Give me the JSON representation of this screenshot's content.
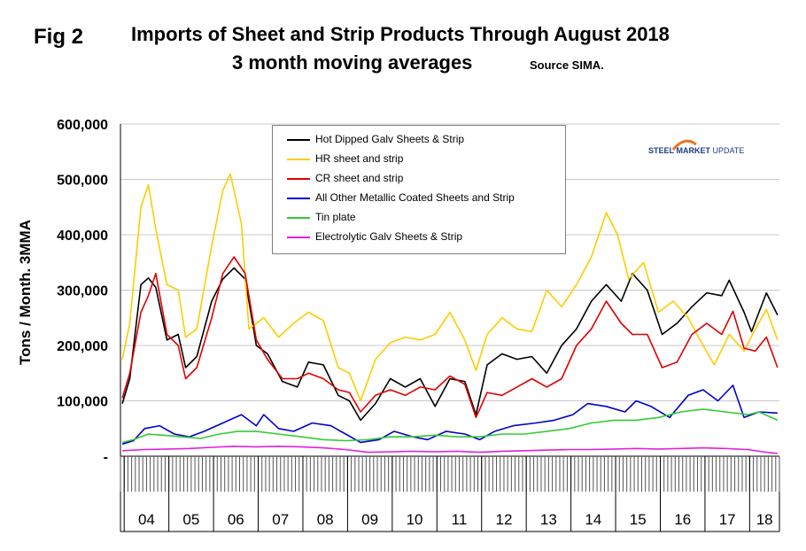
{
  "header": {
    "fig_label": "Fig 2",
    "title_line1": "Imports of Sheet and Strip Products Through August 2018",
    "title_line2": "3 month moving averages",
    "source": "Source SIMA."
  },
  "logo": {
    "word1": "STEEL",
    "word2": "MARKET",
    "word3": "UPDATE",
    "colors": {
      "primary": "#1f3c88",
      "accent": "#e87722"
    }
  },
  "chart_data": {
    "type": "line",
    "title": "Imports of Sheet and Strip Products Through August 2018",
    "subtitle": "3 month moving averages",
    "xlabel": "",
    "ylabel": "Tons / Month. 3MMA",
    "ylim": [
      0,
      600000
    ],
    "y_ticks": [
      0,
      100000,
      200000,
      300000,
      400000,
      500000,
      600000
    ],
    "y_tick_labels": [
      "-",
      "100,000",
      "200,000",
      "300,000",
      "400,000",
      "500,000",
      "600,000"
    ],
    "x_tick_labels": [
      "04",
      "05",
      "06",
      "07",
      "08",
      "09",
      "10",
      "11",
      "12",
      "13",
      "14",
      "15",
      "16",
      "17",
      "18"
    ],
    "x_range": [
      "2003-12",
      "2018-08"
    ],
    "grid": "horizontal",
    "legend_position": "top-center",
    "series": [
      {
        "name": "Hot Dipped Galv Sheets & Strip",
        "color": "#000000",
        "points": [
          [
            "2003-12",
            95000
          ],
          [
            "2004-02",
            140000
          ],
          [
            "2004-05",
            310000
          ],
          [
            "2004-07",
            322000
          ],
          [
            "2004-09",
            305000
          ],
          [
            "2004-12",
            210000
          ],
          [
            "2005-03",
            220000
          ],
          [
            "2005-05",
            160000
          ],
          [
            "2005-08",
            180000
          ],
          [
            "2005-12",
            280000
          ],
          [
            "2006-03",
            320000
          ],
          [
            "2006-06",
            340000
          ],
          [
            "2006-09",
            320000
          ],
          [
            "2006-12",
            200000
          ],
          [
            "2007-03",
            185000
          ],
          [
            "2007-07",
            135000
          ],
          [
            "2007-11",
            125000
          ],
          [
            "2008-02",
            170000
          ],
          [
            "2008-06",
            165000
          ],
          [
            "2008-10",
            110000
          ],
          [
            "2009-01",
            100000
          ],
          [
            "2009-04",
            65000
          ],
          [
            "2009-08",
            95000
          ],
          [
            "2009-12",
            140000
          ],
          [
            "2010-04",
            125000
          ],
          [
            "2010-08",
            140000
          ],
          [
            "2010-12",
            90000
          ],
          [
            "2011-04",
            140000
          ],
          [
            "2011-08",
            135000
          ],
          [
            "2011-11",
            75000
          ],
          [
            "2012-02",
            165000
          ],
          [
            "2012-06",
            185000
          ],
          [
            "2012-10",
            175000
          ],
          [
            "2013-02",
            180000
          ],
          [
            "2013-06",
            150000
          ],
          [
            "2013-10",
            200000
          ],
          [
            "2014-02",
            230000
          ],
          [
            "2014-06",
            280000
          ],
          [
            "2014-10",
            310000
          ],
          [
            "2015-02",
            280000
          ],
          [
            "2015-05",
            330000
          ],
          [
            "2015-09",
            300000
          ],
          [
            "2016-01",
            220000
          ],
          [
            "2016-05",
            240000
          ],
          [
            "2016-09",
            270000
          ],
          [
            "2017-01",
            295000
          ],
          [
            "2017-05",
            290000
          ],
          [
            "2017-07",
            318000
          ],
          [
            "2017-11",
            260000
          ],
          [
            "2018-01",
            225000
          ],
          [
            "2018-05",
            295000
          ],
          [
            "2018-08",
            255000
          ]
        ]
      },
      {
        "name": "HR sheet and strip",
        "color": "#ffcc00",
        "points": [
          [
            "2003-12",
            175000
          ],
          [
            "2004-02",
            240000
          ],
          [
            "2004-05",
            450000
          ],
          [
            "2004-07",
            490000
          ],
          [
            "2004-09",
            410000
          ],
          [
            "2004-12",
            310000
          ],
          [
            "2005-03",
            300000
          ],
          [
            "2005-05",
            215000
          ],
          [
            "2005-08",
            230000
          ],
          [
            "2005-12",
            380000
          ],
          [
            "2006-03",
            480000
          ],
          [
            "2006-05",
            510000
          ],
          [
            "2006-08",
            420000
          ],
          [
            "2006-10",
            230000
          ],
          [
            "2007-02",
            250000
          ],
          [
            "2007-06",
            215000
          ],
          [
            "2007-10",
            240000
          ],
          [
            "2008-02",
            260000
          ],
          [
            "2008-06",
            245000
          ],
          [
            "2008-10",
            160000
          ],
          [
            "2009-01",
            150000
          ],
          [
            "2009-04",
            100000
          ],
          [
            "2009-08",
            175000
          ],
          [
            "2009-12",
            205000
          ],
          [
            "2010-04",
            215000
          ],
          [
            "2010-08",
            210000
          ],
          [
            "2010-12",
            220000
          ],
          [
            "2011-04",
            260000
          ],
          [
            "2011-08",
            210000
          ],
          [
            "2011-11",
            155000
          ],
          [
            "2012-02",
            220000
          ],
          [
            "2012-06",
            250000
          ],
          [
            "2012-10",
            230000
          ],
          [
            "2013-02",
            225000
          ],
          [
            "2013-06",
            300000
          ],
          [
            "2013-10",
            270000
          ],
          [
            "2014-02",
            310000
          ],
          [
            "2014-06",
            360000
          ],
          [
            "2014-10",
            440000
          ],
          [
            "2015-01",
            400000
          ],
          [
            "2015-04",
            320000
          ],
          [
            "2015-08",
            350000
          ],
          [
            "2015-12",
            260000
          ],
          [
            "2016-04",
            280000
          ],
          [
            "2016-08",
            250000
          ],
          [
            "2016-12",
            200000
          ],
          [
            "2017-03",
            165000
          ],
          [
            "2017-07",
            220000
          ],
          [
            "2017-11",
            190000
          ],
          [
            "2018-02",
            230000
          ],
          [
            "2018-05",
            265000
          ],
          [
            "2018-08",
            210000
          ]
        ]
      },
      {
        "name": "CR sheet and strip",
        "color": "#e00000",
        "points": [
          [
            "2003-12",
            105000
          ],
          [
            "2004-02",
            150000
          ],
          [
            "2004-05",
            260000
          ],
          [
            "2004-07",
            290000
          ],
          [
            "2004-09",
            330000
          ],
          [
            "2004-12",
            220000
          ],
          [
            "2005-03",
            200000
          ],
          [
            "2005-05",
            140000
          ],
          [
            "2005-08",
            160000
          ],
          [
            "2005-12",
            250000
          ],
          [
            "2006-03",
            330000
          ],
          [
            "2006-06",
            360000
          ],
          [
            "2006-09",
            330000
          ],
          [
            "2006-12",
            210000
          ],
          [
            "2007-03",
            175000
          ],
          [
            "2007-07",
            140000
          ],
          [
            "2007-11",
            140000
          ],
          [
            "2008-02",
            150000
          ],
          [
            "2008-06",
            140000
          ],
          [
            "2008-10",
            120000
          ],
          [
            "2009-01",
            115000
          ],
          [
            "2009-04",
            80000
          ],
          [
            "2009-08",
            110000
          ],
          [
            "2009-12",
            120000
          ],
          [
            "2010-04",
            110000
          ],
          [
            "2010-08",
            125000
          ],
          [
            "2010-12",
            120000
          ],
          [
            "2011-04",
            145000
          ],
          [
            "2011-08",
            130000
          ],
          [
            "2011-11",
            70000
          ],
          [
            "2012-02",
            115000
          ],
          [
            "2012-06",
            110000
          ],
          [
            "2012-10",
            125000
          ],
          [
            "2013-02",
            140000
          ],
          [
            "2013-06",
            125000
          ],
          [
            "2013-10",
            140000
          ],
          [
            "2014-02",
            200000
          ],
          [
            "2014-06",
            230000
          ],
          [
            "2014-10",
            280000
          ],
          [
            "2015-02",
            240000
          ],
          [
            "2015-05",
            220000
          ],
          [
            "2015-09",
            220000
          ],
          [
            "2016-01",
            160000
          ],
          [
            "2016-05",
            170000
          ],
          [
            "2016-09",
            220000
          ],
          [
            "2017-01",
            240000
          ],
          [
            "2017-05",
            220000
          ],
          [
            "2017-08",
            262000
          ],
          [
            "2017-11",
            195000
          ],
          [
            "2018-02",
            190000
          ],
          [
            "2018-05",
            215000
          ],
          [
            "2018-08",
            160000
          ]
        ]
      },
      {
        "name": "All Other Metallic Coated Sheets and Strip",
        "color": "#0000cc",
        "points": [
          [
            "2003-12",
            22000
          ],
          [
            "2004-03",
            28000
          ],
          [
            "2004-06",
            50000
          ],
          [
            "2004-10",
            55000
          ],
          [
            "2005-02",
            40000
          ],
          [
            "2005-06",
            35000
          ],
          [
            "2005-10",
            45000
          ],
          [
            "2006-03",
            60000
          ],
          [
            "2006-08",
            75000
          ],
          [
            "2006-12",
            55000
          ],
          [
            "2007-02",
            75000
          ],
          [
            "2007-06",
            50000
          ],
          [
            "2007-10",
            45000
          ],
          [
            "2008-03",
            60000
          ],
          [
            "2008-08",
            55000
          ],
          [
            "2008-12",
            40000
          ],
          [
            "2009-04",
            25000
          ],
          [
            "2009-09",
            30000
          ],
          [
            "2010-01",
            45000
          ],
          [
            "2010-06",
            35000
          ],
          [
            "2010-10",
            30000
          ],
          [
            "2011-03",
            45000
          ],
          [
            "2011-08",
            40000
          ],
          [
            "2011-12",
            30000
          ],
          [
            "2012-04",
            45000
          ],
          [
            "2012-09",
            55000
          ],
          [
            "2013-03",
            60000
          ],
          [
            "2013-08",
            65000
          ],
          [
            "2014-01",
            75000
          ],
          [
            "2014-05",
            95000
          ],
          [
            "2014-10",
            90000
          ],
          [
            "2015-03",
            80000
          ],
          [
            "2015-06",
            100000
          ],
          [
            "2015-10",
            90000
          ],
          [
            "2016-03",
            70000
          ],
          [
            "2016-08",
            110000
          ],
          [
            "2016-12",
            120000
          ],
          [
            "2017-04",
            100000
          ],
          [
            "2017-08",
            128000
          ],
          [
            "2017-11",
            70000
          ],
          [
            "2018-03",
            80000
          ],
          [
            "2018-08",
            78000
          ]
        ]
      },
      {
        "name": "Tin plate",
        "color": "#33cc33",
        "points": [
          [
            "2003-12",
            25000
          ],
          [
            "2004-03",
            30000
          ],
          [
            "2004-07",
            40000
          ],
          [
            "2004-11",
            38000
          ],
          [
            "2005-04",
            35000
          ],
          [
            "2005-09",
            32000
          ],
          [
            "2006-02",
            40000
          ],
          [
            "2006-07",
            45000
          ],
          [
            "2006-12",
            45000
          ],
          [
            "2007-06",
            40000
          ],
          [
            "2007-12",
            35000
          ],
          [
            "2008-06",
            30000
          ],
          [
            "2008-12",
            28000
          ],
          [
            "2009-06",
            30000
          ],
          [
            "2009-12",
            35000
          ],
          [
            "2010-06",
            35000
          ],
          [
            "2010-12",
            38000
          ],
          [
            "2011-06",
            35000
          ],
          [
            "2011-12",
            35000
          ],
          [
            "2012-06",
            40000
          ],
          [
            "2012-12",
            40000
          ],
          [
            "2013-06",
            45000
          ],
          [
            "2013-12",
            50000
          ],
          [
            "2014-06",
            60000
          ],
          [
            "2014-12",
            65000
          ],
          [
            "2015-06",
            65000
          ],
          [
            "2015-12",
            70000
          ],
          [
            "2016-06",
            80000
          ],
          [
            "2016-12",
            85000
          ],
          [
            "2017-06",
            80000
          ],
          [
            "2017-12",
            75000
          ],
          [
            "2018-03",
            80000
          ],
          [
            "2018-08",
            65000
          ]
        ]
      },
      {
        "name": "Electrolytic Galv Sheets & Strip",
        "color": "#e020e0",
        "points": [
          [
            "2003-12",
            10000
          ],
          [
            "2004-06",
            12000
          ],
          [
            "2004-12",
            13000
          ],
          [
            "2005-06",
            14000
          ],
          [
            "2005-12",
            16000
          ],
          [
            "2006-06",
            18000
          ],
          [
            "2006-12",
            17000
          ],
          [
            "2007-06",
            18000
          ],
          [
            "2007-12",
            17000
          ],
          [
            "2008-06",
            15000
          ],
          [
            "2008-12",
            12000
          ],
          [
            "2009-06",
            7000
          ],
          [
            "2009-12",
            8000
          ],
          [
            "2010-06",
            9000
          ],
          [
            "2010-12",
            8000
          ],
          [
            "2011-06",
            9000
          ],
          [
            "2011-12",
            7000
          ],
          [
            "2012-06",
            9000
          ],
          [
            "2012-12",
            10000
          ],
          [
            "2013-06",
            11000
          ],
          [
            "2013-12",
            12000
          ],
          [
            "2014-06",
            12000
          ],
          [
            "2014-12",
            13000
          ],
          [
            "2015-06",
            14000
          ],
          [
            "2015-12",
            13000
          ],
          [
            "2016-06",
            14000
          ],
          [
            "2016-12",
            15000
          ],
          [
            "2017-06",
            14000
          ],
          [
            "2017-12",
            12000
          ],
          [
            "2018-04",
            8000
          ],
          [
            "2018-08",
            5000
          ]
        ]
      }
    ]
  }
}
